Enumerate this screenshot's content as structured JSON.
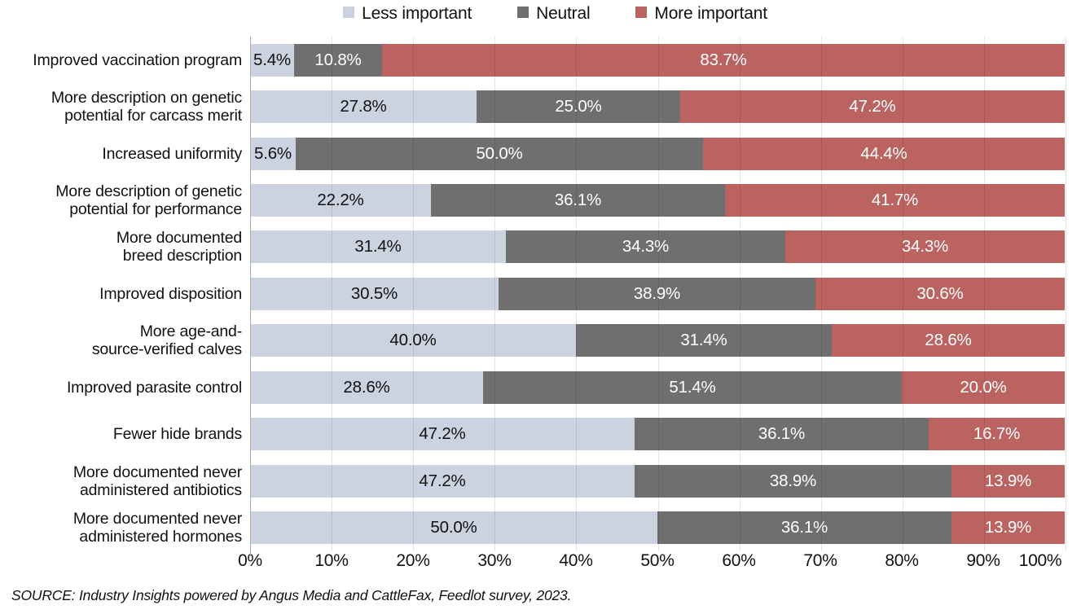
{
  "legend": {
    "items": [
      {
        "label": "Less important"
      },
      {
        "label": "Neutral"
      },
      {
        "label": "More important"
      }
    ]
  },
  "chart_data": {
    "type": "bar",
    "subtype": "horizontal-stacked-100",
    "title": "",
    "xlabel": "",
    "ylabel": "",
    "xlim": [
      0,
      100
    ],
    "grid": "vertical",
    "legend_position": "top",
    "value_suffix": "%",
    "x_ticks": [
      "0%",
      "10%",
      "20%",
      "30%",
      "40%",
      "50%",
      "60%",
      "70%",
      "80%",
      "90%",
      "100%"
    ],
    "categories": [
      "Improved vaccination program",
      "More description on genetic\npotential for carcass merit",
      "Increased uniformity",
      "More description of genetic\npotential for performance",
      "More documented\nbreed description",
      "Improved disposition",
      "More age-and-\nsource-verified calves",
      "Improved parasite control",
      "Fewer hide brands",
      "More documented never\nadministered antibiotics",
      "More documented never\nadministered hormones"
    ],
    "series": [
      {
        "key": "less",
        "name": "Less important",
        "color": "#ccd3e0",
        "values": [
          5.4,
          27.8,
          5.6,
          22.2,
          31.4,
          30.5,
          40.0,
          28.6,
          47.2,
          47.2,
          50.0
        ]
      },
      {
        "key": "neutral",
        "name": "Neutral",
        "color": "#6f6f6f",
        "values": [
          10.8,
          25.0,
          50.0,
          36.1,
          34.3,
          38.9,
          31.4,
          51.4,
          36.1,
          38.9,
          36.1
        ]
      },
      {
        "key": "more",
        "name": "More important",
        "color": "#bb6361",
        "values": [
          83.7,
          47.2,
          44.4,
          41.7,
          34.3,
          30.6,
          28.6,
          20.0,
          16.7,
          13.9,
          13.9
        ]
      }
    ],
    "source": "SOURCE: Industry Insights powered by Angus Media and CattleFax, Feedlot survey, 2023."
  }
}
